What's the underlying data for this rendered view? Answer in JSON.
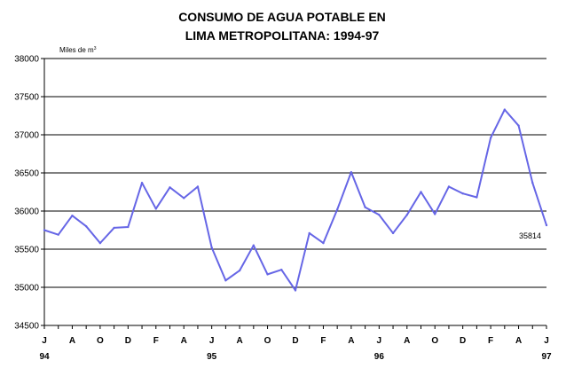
{
  "chart_data": {
    "type": "line",
    "title": [
      "CONSUMO DE AGUA POTABLE EN",
      "LIMA METROPOLITANA: 1994-97"
    ],
    "ylabel": "Miles de m",
    "ylabel_sup": "3",
    "ylim": [
      34500,
      38000
    ],
    "yticks": [
      34500,
      35000,
      35500,
      36000,
      36500,
      37000,
      37500,
      38000
    ],
    "grid": "horizontal",
    "month_labels": [
      "J",
      "A",
      "O",
      "D",
      "F",
      "A",
      "J",
      "A",
      "O",
      "D",
      "F",
      "A",
      "J",
      "A",
      "O",
      "D",
      "F",
      "A",
      "J"
    ],
    "year_labels": [
      "94",
      "95",
      "96",
      "97"
    ],
    "annotation": "35814",
    "line_color": "#6666e6",
    "series": [
      {
        "values": [
          35750,
          35690,
          35940,
          35800,
          35580,
          35780,
          35790,
          36370,
          36030,
          36310,
          36170,
          36320,
          35520,
          35090,
          35220,
          35550,
          35170,
          35230,
          34960,
          35710,
          35580,
          36020,
          36510,
          36050,
          35950,
          35710,
          35950,
          36250,
          35960,
          36320,
          36230,
          36180,
          36960,
          37330,
          37120,
          36370,
          35814
        ]
      }
    ]
  }
}
